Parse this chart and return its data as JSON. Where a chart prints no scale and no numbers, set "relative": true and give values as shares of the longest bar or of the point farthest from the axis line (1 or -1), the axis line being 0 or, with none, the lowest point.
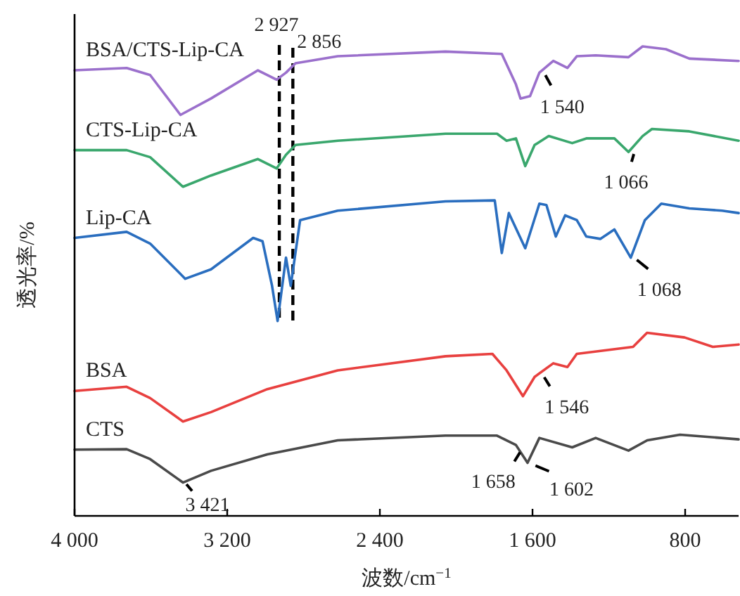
{
  "chart_data": {
    "type": "line",
    "relative": true,
    "xlabel": "波数/cm$^{−1}$",
    "ylabel": "透光率/%",
    "xlim": [
      4000,
      520
    ],
    "xticks": [
      {
        "value": 4000,
        "label": "4 000"
      },
      {
        "value": 3200,
        "label": "3 200"
      },
      {
        "value": 2400,
        "label": "2 400"
      },
      {
        "value": 1600,
        "label": "1 600"
      },
      {
        "value": 800,
        "label": "800"
      }
    ],
    "series": [
      {
        "name": "BSA/CTS-Lip-CA",
        "color": "#9b70cc",
        "x": [
          4000,
          3727,
          3604,
          3445,
          3285,
          3039,
          2941,
          2892,
          2842,
          2621,
          2056,
          1761,
          1687,
          1663,
          1613,
          1564,
          1491,
          1417,
          1368,
          1269,
          1097,
          1023,
          901,
          778,
          520
        ],
        "values": [
          0.949,
          0.954,
          0.939,
          0.854,
          0.889,
          0.949,
          0.929,
          0.944,
          0.964,
          0.979,
          0.989,
          0.984,
          0.919,
          0.889,
          0.894,
          0.944,
          0.969,
          0.954,
          0.979,
          0.981,
          0.977,
          1,
          0.994,
          0.974,
          0.969
        ]
      },
      {
        "name": "CTS-Lip-CA",
        "color": "#3aa76d",
        "x": [
          4000,
          3727,
          3604,
          3432,
          3285,
          3039,
          2941,
          2892,
          2842,
          2621,
          2056,
          1786,
          1736,
          1687,
          1638,
          1589,
          1515,
          1392,
          1318,
          1171,
          1097,
          1023,
          974,
          778,
          520
        ],
        "values": [
          0.779,
          0.779,
          0.764,
          0.701,
          0.725,
          0.76,
          0.74,
          0.769,
          0.79,
          0.799,
          0.814,
          0.814,
          0.799,
          0.804,
          0.745,
          0.79,
          0.809,
          0.794,
          0.804,
          0.804,
          0.775,
          0.809,
          0.824,
          0.819,
          0.799
        ]
      },
      {
        "name": "Lip-CA",
        "color": "#2a6ebf",
        "x": [
          4000,
          3727,
          3604,
          3420,
          3285,
          3064,
          3015,
          2965,
          2936,
          2892,
          2867,
          2818,
          2621,
          2056,
          1798,
          1761,
          1724,
          1638,
          1564,
          1527,
          1478,
          1429,
          1368,
          1318,
          1245,
          1171,
          1085,
          1011,
          925,
          778,
          606,
          520
        ],
        "values": [
          0.592,
          0.605,
          0.58,
          0.505,
          0.525,
          0.592,
          0.585,
          0.49,
          0.415,
          0.55,
          0.49,
          0.63,
          0.65,
          0.67,
          0.672,
          0.56,
          0.645,
          0.57,
          0.665,
          0.662,
          0.595,
          0.64,
          0.63,
          0.595,
          0.59,
          0.61,
          0.55,
          0.63,
          0.665,
          0.655,
          0.65,
          0.645
        ]
      },
      {
        "name": "BSA",
        "color": "#e8403f",
        "x": [
          4000,
          3727,
          3604,
          3432,
          3285,
          2990,
          2621,
          2056,
          1810,
          1736,
          1650,
          1589,
          1491,
          1417,
          1368,
          1073,
          1000,
          803,
          655,
          520
        ],
        "values": [
          0.266,
          0.275,
          0.251,
          0.201,
          0.221,
          0.27,
          0.31,
          0.34,
          0.345,
          0.31,
          0.255,
          0.296,
          0.325,
          0.317,
          0.345,
          0.36,
          0.39,
          0.38,
          0.36,
          0.365
        ]
      },
      {
        "name": "CTS",
        "color": "#4a4a4a",
        "x": [
          4000,
          3727,
          3604,
          3432,
          3285,
          2990,
          2621,
          2056,
          1786,
          1687,
          1626,
          1564,
          1392,
          1269,
          1097,
          999,
          827,
          520
        ],
        "values": [
          0.141,
          0.142,
          0.121,
          0.071,
          0.096,
          0.131,
          0.161,
          0.171,
          0.171,
          0.151,
          0.113,
          0.166,
          0.146,
          0.166,
          0.139,
          0.161,
          0.173,
          0.163
        ]
      }
    ],
    "ref_lines": [
      {
        "axis": "x",
        "value": 2927,
        "label": "2 927",
        "color": "#000000",
        "line_style": "dashed"
      },
      {
        "axis": "x",
        "value": 2856,
        "label": "2 856",
        "color": "#000000",
        "line_style": "dashed"
      }
    ],
    "annotations": [
      {
        "text": "1 540",
        "x": 1540,
        "y": 0.944
      },
      {
        "text": "1 066",
        "x": 1066,
        "y": 0.775
      },
      {
        "text": "1 068",
        "x": 1068,
        "y": 0.55
      },
      {
        "text": "1 546",
        "x": 1546,
        "y": 0.3
      },
      {
        "text": "3 421",
        "x": 3421,
        "y": 0.071
      },
      {
        "text": "1 658",
        "x": 1658,
        "y": 0.14
      },
      {
        "text": "1 602",
        "x": 1602,
        "y": 0.11
      }
    ]
  }
}
